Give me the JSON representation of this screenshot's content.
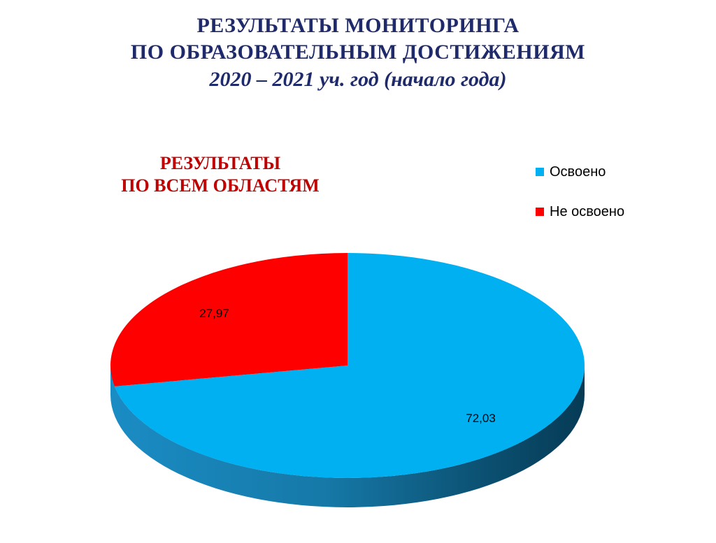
{
  "header": {
    "title_line1": "РЕЗУЛЬТАТЫ МОНИТОРИНГА",
    "title_line2": "ПО ОБРАЗОВАТЕЛЬНЫМ ДОСТИЖЕНИЯМ",
    "subtitle": "2020 – 2021 уч. год (начало года)"
  },
  "colors": {
    "title": "#1f2a6b",
    "heading": "#c00000"
  },
  "chart_data": {
    "type": "pie",
    "title_line1": "РЕЗУЛЬТАТЫ",
    "title_line2": "ПО ВСЕМ ОБЛАСТЯМ",
    "style": "3d",
    "legend_position": "top-right",
    "slices": [
      {
        "name": "Освоено",
        "value": 72.03,
        "label": "72,03",
        "color": "#00b0f0"
      },
      {
        "name": "Не освоено",
        "value": 27.97,
        "label": "27,97",
        "color": "#ff0000"
      }
    ]
  }
}
